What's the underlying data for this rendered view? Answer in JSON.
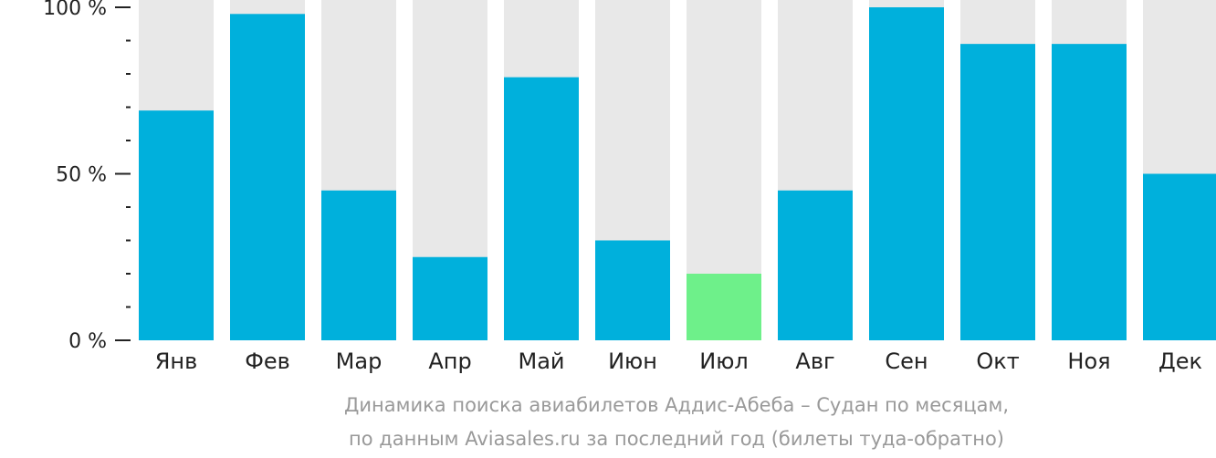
{
  "chart_data": {
    "type": "bar",
    "title": "",
    "xlabel": "",
    "ylabel": "",
    "ylim": [
      0,
      100
    ],
    "y_ticks": [
      {
        "value": 0,
        "label": "0 %"
      },
      {
        "value": 50,
        "label": "50 %"
      },
      {
        "value": 100,
        "label": "100 %"
      }
    ],
    "y_minor_step": 10,
    "categories": [
      "Янв",
      "Фев",
      "Мар",
      "Апр",
      "Май",
      "Июн",
      "Июл",
      "Авг",
      "Сен",
      "Окт",
      "Ноя",
      "Дек"
    ],
    "values": [
      69,
      98,
      45,
      25,
      79,
      30,
      20,
      45,
      100,
      89,
      89,
      50
    ],
    "highlight_index": 6,
    "background_track": true,
    "grid": false,
    "legend": "none",
    "caption_line1": "Динамика поиска авиабилетов Аддис-Абеба – Судан по месяцам,",
    "caption_line2": "по данным Aviasales.ru за последний год (билеты туда-обратно)",
    "colors": {
      "bar": "#00b0dc",
      "highlight": "#6ef08a",
      "track": "#e8e8e8",
      "axis": "#222222",
      "caption": "#999999"
    }
  }
}
